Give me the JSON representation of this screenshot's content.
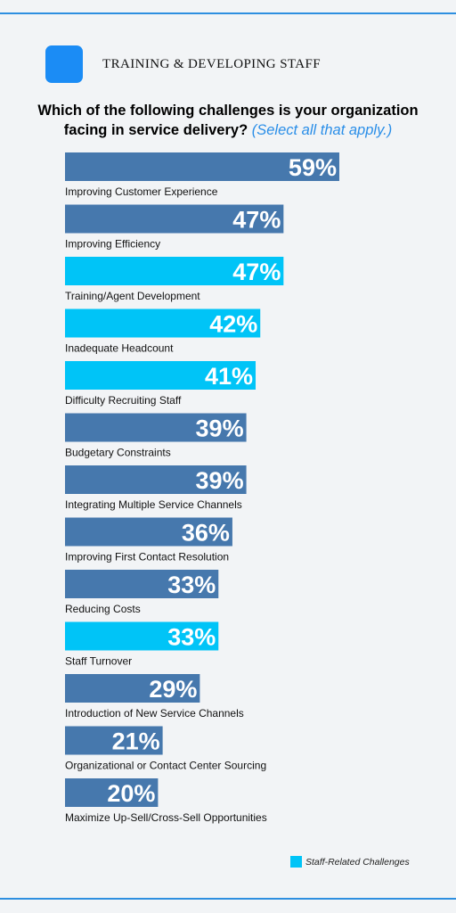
{
  "header": {
    "title": "TRAINING & DEVELOPING STAFF"
  },
  "question": {
    "text": "Which of the following challenges is your organization facing in service delivery?",
    "note": "(Select all that apply.)"
  },
  "colors": {
    "default_bar": "#4678ad",
    "staff_bar": "#00c4f7",
    "accent": "#2e8fe0"
  },
  "chart_data": {
    "type": "bar",
    "orientation": "horizontal",
    "value_suffix": "%",
    "categories": [
      "Improving Customer Experience",
      "Improving Efficiency",
      "Training/Agent Development",
      "Inadequate Headcount",
      "Difficulty Recruiting Staff",
      "Budgetary Constraints",
      "Integrating Multiple Service Channels",
      "Improving First Contact Resolution",
      "Reducing Costs",
      "Staff Turnover",
      "Introduction of New Service Channels",
      "Organizational or Contact Center Sourcing",
      "Maximize Up-Sell/Cross-Sell Opportunities"
    ],
    "values": [
      59,
      47,
      47,
      42,
      41,
      39,
      39,
      36,
      33,
      33,
      29,
      21,
      20
    ],
    "staff_related": [
      false,
      false,
      true,
      true,
      true,
      false,
      false,
      false,
      false,
      true,
      false,
      false,
      false
    ],
    "legend": [
      {
        "label": "Staff-Related Challenges",
        "color": "#00c4f7"
      }
    ]
  }
}
